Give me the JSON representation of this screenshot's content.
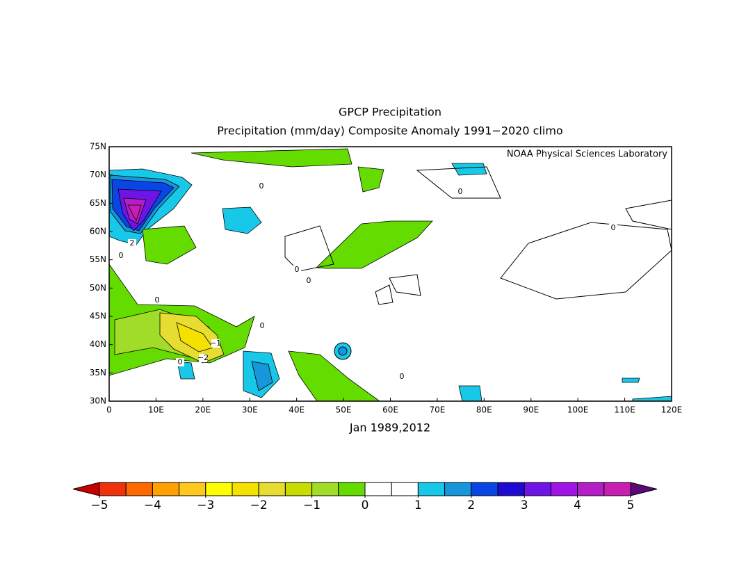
{
  "header": {
    "title": "GPCP Precipitation",
    "subtitle": "Precipitation (mm/day) Composite Anomaly 1991−2020 climo",
    "credit": "NOAA Physical Sciences Laboratory"
  },
  "map": {
    "lon_range": [
      0,
      120
    ],
    "lat_range": [
      30,
      75
    ],
    "xticks": [
      {
        "value": 0,
        "label": "0"
      },
      {
        "value": 10,
        "label": "10E"
      },
      {
        "value": 20,
        "label": "20E"
      },
      {
        "value": 30,
        "label": "30E"
      },
      {
        "value": 40,
        "label": "40E"
      },
      {
        "value": 50,
        "label": "50E"
      },
      {
        "value": 60,
        "label": "60E"
      },
      {
        "value": 70,
        "label": "70E"
      },
      {
        "value": 80,
        "label": "80E"
      },
      {
        "value": 90,
        "label": "90E"
      },
      {
        "value": 100,
        "label": "100E"
      },
      {
        "value": 110,
        "label": "110E"
      },
      {
        "value": 120,
        "label": "120E"
      }
    ],
    "yticks": [
      {
        "value": 30,
        "label": "30N"
      },
      {
        "value": 35,
        "label": "35N"
      },
      {
        "value": 40,
        "label": "40N"
      },
      {
        "value": 45,
        "label": "45N"
      },
      {
        "value": 50,
        "label": "50N"
      },
      {
        "value": 55,
        "label": "55N"
      },
      {
        "value": 60,
        "label": "60N"
      },
      {
        "value": 65,
        "label": "65N"
      },
      {
        "value": 70,
        "label": "70N"
      },
      {
        "value": 75,
        "label": "75N"
      }
    ],
    "xlabel": "Jan 1989,2012",
    "contour_labels": [
      "0",
      "0",
      "0",
      "0",
      "0",
      "0",
      "0",
      "0",
      "0",
      "0",
      "−1",
      "−2",
      "2"
    ]
  },
  "colorbar": {
    "levels": [
      -5,
      -4.5,
      -4,
      -3.5,
      -3,
      -2.5,
      -2,
      -1.5,
      -1,
      -0.5,
      0,
      0.5,
      1,
      1.5,
      2,
      2.5,
      3,
      3.5,
      4,
      4.5,
      5
    ],
    "colors": [
      "#f0320a",
      "#ff6a00",
      "#ffa000",
      "#ffc81e",
      "#ffff00",
      "#f5e100",
      "#e6dc32",
      "#c8dc00",
      "#a0dc28",
      "#64dc00",
      "#ffffff",
      "#ffffff",
      "#18c8e8",
      "#1896dc",
      "#0a46e6",
      "#1e0ad2",
      "#6e14e6",
      "#a014e6",
      "#b41ec8",
      "#c81eb4"
    ],
    "under_color": "#c80000",
    "over_color": "#5a0a78",
    "ticks": [
      {
        "value": -5,
        "label": "−5"
      },
      {
        "value": -4,
        "label": "−4"
      },
      {
        "value": -3,
        "label": "−3"
      },
      {
        "value": -2,
        "label": "−2"
      },
      {
        "value": -1,
        "label": "−1"
      },
      {
        "value": 0,
        "label": "0"
      },
      {
        "value": 1,
        "label": "1"
      },
      {
        "value": 2,
        "label": "2"
      },
      {
        "value": 3,
        "label": "3"
      },
      {
        "value": 4,
        "label": "4"
      },
      {
        "value": 5,
        "label": "5"
      }
    ]
  }
}
